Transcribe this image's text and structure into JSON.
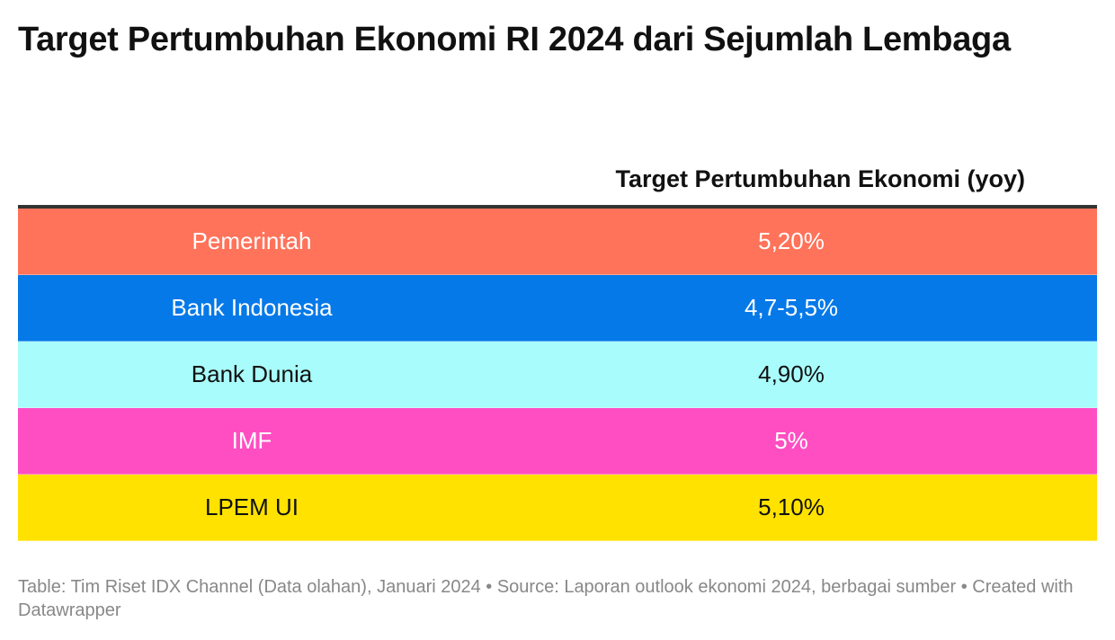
{
  "title": "Target Pertumbuhan Ekonomi RI 2024 dari Sejumlah Lembaga",
  "chart_data": {
    "type": "table",
    "columns": [
      "",
      "Target Pertumbuhan Ekonomi (yoy)"
    ],
    "rows": [
      {
        "name": "Pemerintah",
        "value": "5,20%",
        "bg": "#ff735a",
        "fg": "#ffffff"
      },
      {
        "name": "Bank Indonesia",
        "value": "4,7-5,5%",
        "bg": "#0579e8",
        "fg": "#ffffff"
      },
      {
        "name": "Bank Dunia",
        "value": "4,90%",
        "bg": "#a8fcfb",
        "fg": "#111111"
      },
      {
        "name": "IMF",
        "value": "5%",
        "bg": "#ff4ec2",
        "fg": "#ffffff"
      },
      {
        "name": "LPEM UI",
        "value": "5,10%",
        "bg": "#ffe200",
        "fg": "#111111"
      }
    ]
  },
  "footer": "Table: Tim Riset IDX Channel (Data olahan), Januari 2024 • Source: Laporan outlook ekonomi 2024, berbagai sumber • Created with Datawrapper"
}
